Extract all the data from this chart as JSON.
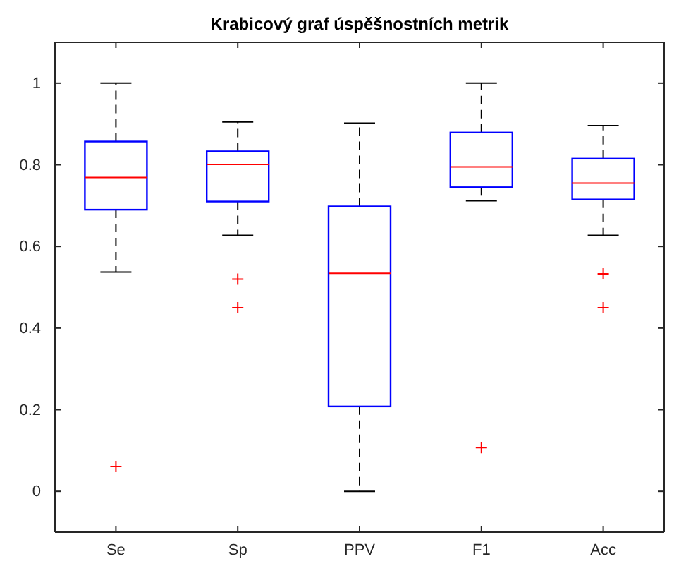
{
  "chart_data": {
    "type": "box",
    "title": "Krabicový graf úspěšnostních metrik",
    "categories": [
      "Se",
      "Sp",
      "PPV",
      "F1",
      "Acc"
    ],
    "boxes": [
      {
        "low": 0.537,
        "q1": 0.69,
        "median": 0.769,
        "q3": 0.857,
        "high": 1.0,
        "outliers": [
          0.061
        ]
      },
      {
        "low": 0.627,
        "q1": 0.71,
        "median": 0.801,
        "q3": 0.833,
        "high": 0.905,
        "outliers": [
          0.52,
          0.45
        ]
      },
      {
        "low": 0.0,
        "q1": 0.208,
        "median": 0.534,
        "q3": 0.698,
        "high": 0.902
      },
      {
        "low": 0.712,
        "q1": 0.745,
        "median": 0.795,
        "q3": 0.879,
        "high": 1.0,
        "outliers": [
          0.107
        ]
      },
      {
        "low": 0.627,
        "q1": 0.715,
        "median": 0.755,
        "q3": 0.815,
        "high": 0.896,
        "outliers": [
          0.533,
          0.45
        ]
      }
    ],
    "color": "#0000ff",
    "ylim": [
      -0.1,
      1.1
    ],
    "yticks": [
      0,
      0.2,
      0.4,
      0.6,
      0.8,
      1
    ],
    "grid": false
  }
}
